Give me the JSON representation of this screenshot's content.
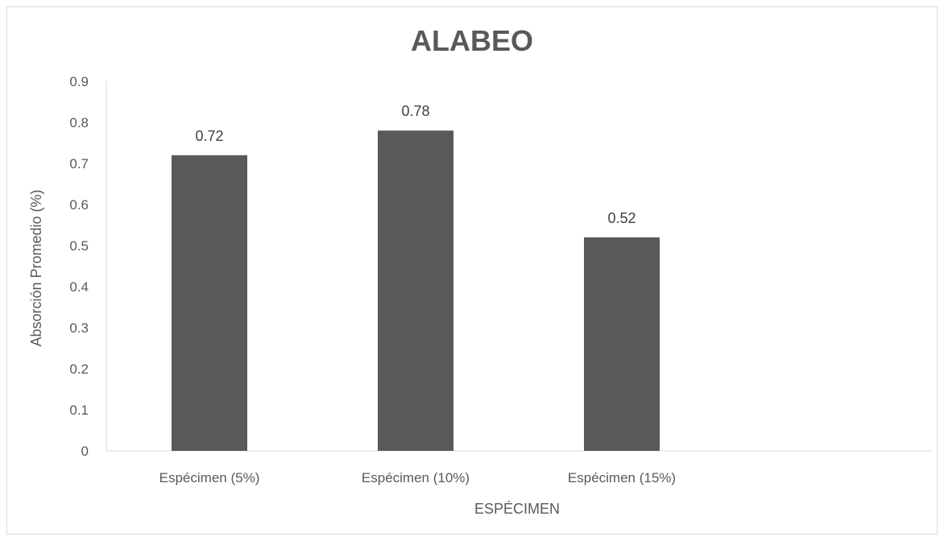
{
  "chart_data": {
    "type": "bar",
    "title": "ALABEO",
    "xlabel": "ESPÉCIMEN",
    "ylabel": "Absorción Promedio (%)",
    "categories": [
      "Espécimen (5%)",
      "Espécimen (10%)",
      "Espécimen (15%)",
      ""
    ],
    "values": [
      0.72,
      0.78,
      0.52,
      null
    ],
    "data_labels": [
      "0.72",
      "0.78",
      "0.52",
      ""
    ],
    "ylim": [
      0,
      0.9
    ],
    "yticks": [
      0,
      0.1,
      0.2,
      0.3,
      0.4,
      0.5,
      0.6,
      0.7,
      0.8,
      0.9
    ],
    "ytick_labels": [
      "0",
      "0.1",
      "0.2",
      "0.3",
      "0.4",
      "0.5",
      "0.6",
      "0.7",
      "0.8",
      "0.9"
    ],
    "grid": false,
    "legend": "none",
    "bar_color": "#595959",
    "axis_color": "#d9d9d9"
  }
}
